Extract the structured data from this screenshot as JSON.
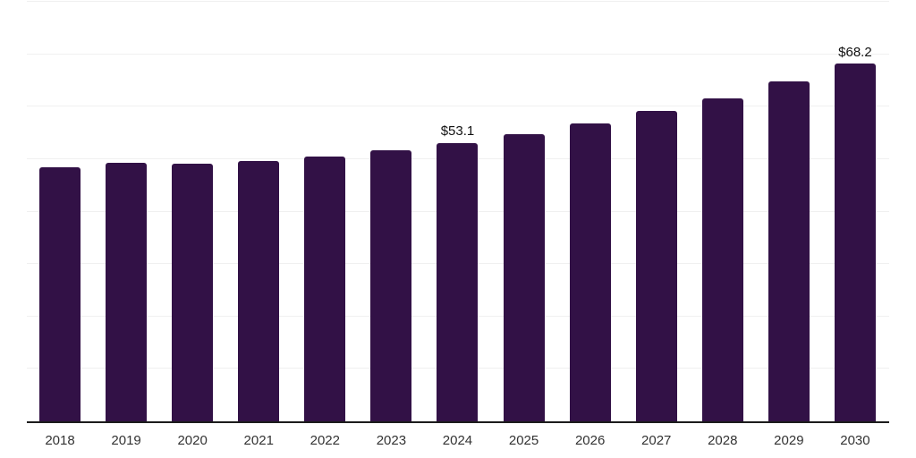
{
  "chart_data": {
    "type": "bar",
    "title": "",
    "xlabel": "",
    "ylabel": "",
    "categories": [
      "2018",
      "2019",
      "2020",
      "2021",
      "2022",
      "2023",
      "2024",
      "2025",
      "2026",
      "2027",
      "2028",
      "2029",
      "2030"
    ],
    "values": [
      48.4,
      49.3,
      49.2,
      49.6,
      50.5,
      51.7,
      53.1,
      54.8,
      56.8,
      59.2,
      61.5,
      64.9,
      68.2
    ],
    "bar_labels": [
      "",
      "",
      "",
      "",
      "",
      "",
      "$53.1",
      "",
      "",
      "",
      "",
      "",
      "$68.2"
    ],
    "ylim": [
      0,
      80
    ],
    "gridline_step": 10,
    "grid": true,
    "legend": false,
    "y_tick_labels_visible": false,
    "colors": {
      "bar": "#321146",
      "axis_line": "#1c1c1c",
      "gridline": "#f0f0f0",
      "x_tick_label": "#333333",
      "data_label": "#111111",
      "background": "#ffffff"
    }
  }
}
